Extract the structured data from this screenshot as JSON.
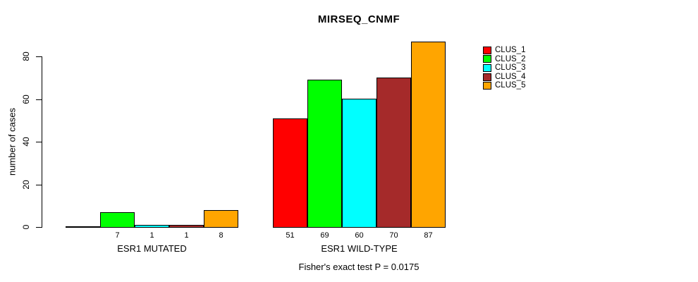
{
  "chart_data": {
    "type": "bar",
    "title": "MIRSEQ_CNMF",
    "xlabel": "",
    "ylabel": "number of cases",
    "ylim": [
      0,
      87
    ],
    "yticks": [
      0,
      20,
      40,
      60,
      80
    ],
    "grid": false,
    "legend_position": "right",
    "categories": [
      "ESR1 MUTATED",
      "ESR1 WILD-TYPE"
    ],
    "series": [
      {
        "name": "CLUS_1",
        "color": "#ff0000",
        "values": [
          0,
          51
        ]
      },
      {
        "name": "CLUS_2",
        "color": "#00ff00",
        "values": [
          7,
          69
        ]
      },
      {
        "name": "CLUS_3",
        "color": "#00ffff",
        "values": [
          1,
          60
        ]
      },
      {
        "name": "CLUS_4",
        "color": "#a52a2a",
        "values": [
          1,
          70
        ]
      },
      {
        "name": "CLUS_5",
        "color": "#ffa500",
        "values": [
          8,
          87
        ]
      }
    ],
    "bar_value_labels": {
      "ESR1 MUTATED": [
        null,
        "7",
        "1",
        "1",
        "8"
      ],
      "ESR1 WILD-TYPE": [
        "51",
        "69",
        "60",
        "70",
        "87"
      ]
    },
    "annotation": "Fisher's exact test P = 0.0175"
  },
  "colors": {
    "axis": "#000000",
    "background": "#ffffff",
    "text": "#000000"
  }
}
